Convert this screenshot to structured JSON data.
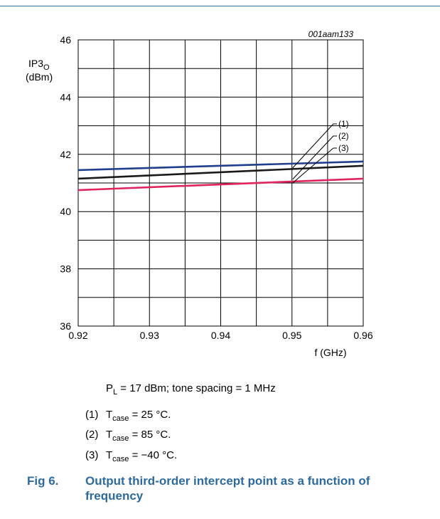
{
  "figure": {
    "number": "Fig 6.",
    "title": "Output third-order intercept point as a function of frequency",
    "ref_code": "001aam133"
  },
  "conditions": {
    "pl_symbol": "P",
    "pl_sub": "L",
    "pl_rest": " = 17 dBm; tone spacing = 1 MHz"
  },
  "notes": [
    {
      "num": "(1)",
      "sym": "T",
      "sub": "case",
      "rest": " = 25 °C."
    },
    {
      "num": "(2)",
      "sym": "T",
      "sub": "case",
      "rest": " = 85 °C."
    },
    {
      "num": "(3)",
      "sym": "T",
      "sub": "case",
      "rest": " = −40 °C."
    }
  ],
  "colors": {
    "accent": "#2c6aa0",
    "series_1": "#1f3f8f",
    "series_2": "#1a1a1a",
    "series_3": "#e0245e",
    "grid": "#000000"
  },
  "chart_data": {
    "type": "line",
    "ylabel_main": "IP3",
    "ylabel_sub": "O",
    "ylabel_unit": "(dBm)",
    "xlabel": "f (GHz)",
    "xlim": [
      0.92,
      0.96
    ],
    "ylim": [
      36,
      46
    ],
    "x_ticks": [
      "0.92",
      "0.93",
      "0.94",
      "0.95",
      "0.96"
    ],
    "y_ticks": [
      "36",
      "38",
      "40",
      "42",
      "44",
      "46"
    ],
    "grid": true,
    "series": [
      {
        "label": "(1)",
        "x": [
          0.92,
          0.96
        ],
        "y": [
          41.45,
          41.75
        ]
      },
      {
        "label": "(2)",
        "x": [
          0.92,
          0.96
        ],
        "y": [
          41.15,
          41.6
        ]
      },
      {
        "label": "(3)",
        "x": [
          0.92,
          0.96
        ],
        "y": [
          40.75,
          41.15
        ]
      }
    ],
    "reference_lines": [
      41.0
    ]
  }
}
